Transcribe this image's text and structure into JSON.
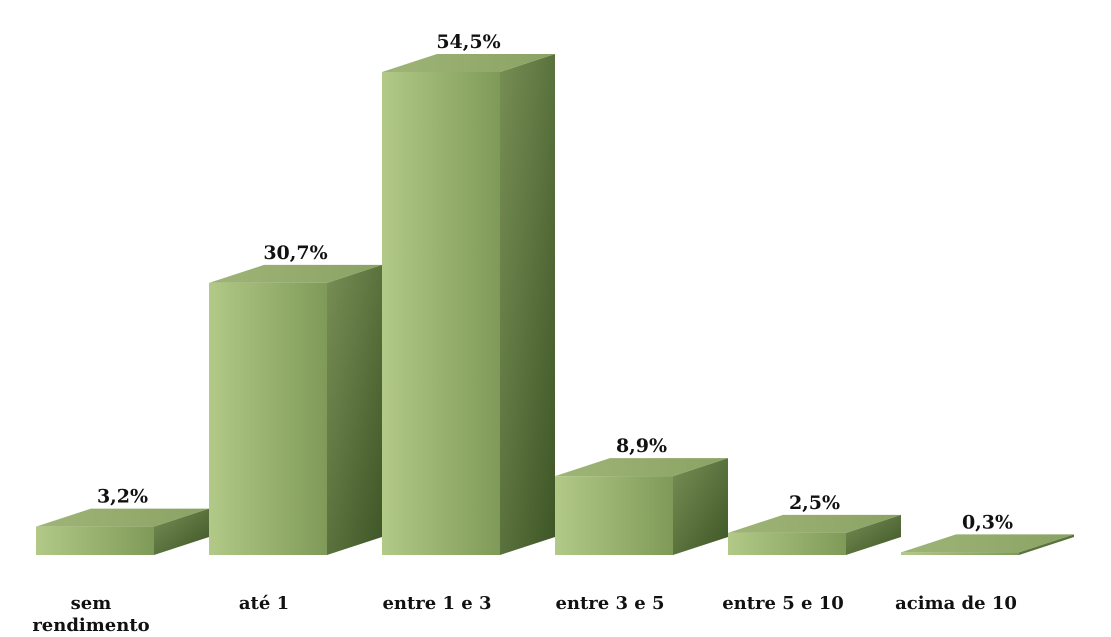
{
  "chart_data": {
    "type": "bar",
    "categories": [
      "sem rendimento",
      "até 1",
      "entre 1 e 3",
      "entre 3 e 5",
      "entre 5 e 10",
      "acima de 10"
    ],
    "category_lines": [
      [
        "sem",
        "rendimento"
      ],
      [
        "até 1"
      ],
      [
        "entre 1 e 3"
      ],
      [
        "entre 3 e 5"
      ],
      [
        "entre 5 e 10"
      ],
      [
        "acima de 10"
      ]
    ],
    "values": [
      3.2,
      30.7,
      54.5,
      8.9,
      2.5,
      0.3
    ],
    "data_labels": [
      "3,2%",
      "30,7%",
      "54,5%",
      "8,9%",
      "2,5%",
      "0,3%"
    ],
    "title": "",
    "xlabel": "",
    "ylabel": "",
    "ylim": [
      0,
      54.5
    ],
    "grid": false,
    "legend": "none",
    "style": "3d-column",
    "colors": {
      "front_light": "#b2c987",
      "front_dark": "#7f9a58",
      "side_light": "#778f55",
      "side_dark": "#3e5526",
      "top_light": "#9fb578",
      "top_dark": "#8aa263"
    }
  }
}
